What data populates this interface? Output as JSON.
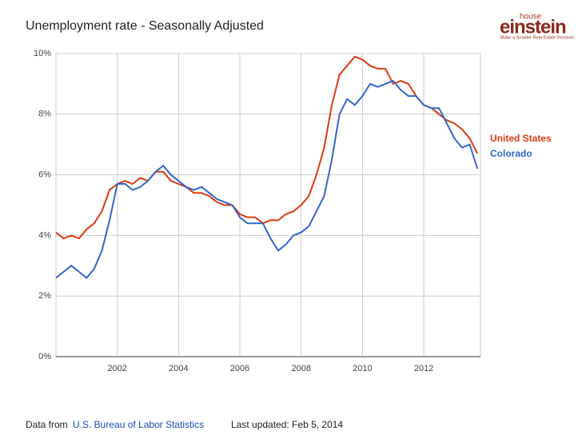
{
  "branding": {
    "small": "house",
    "name": "einstein",
    "tagline": "Make a Smarter Real Estate Decision"
  },
  "chart_data": {
    "type": "line",
    "title": "Unemployment rate - Seasonally Adjusted",
    "x": [
      2000,
      2000.25,
      2000.5,
      2000.75,
      2001,
      2001.25,
      2001.5,
      2001.75,
      2002,
      2002.25,
      2002.5,
      2002.75,
      2003,
      2003.25,
      2003.5,
      2003.75,
      2004,
      2004.25,
      2004.5,
      2004.75,
      2005,
      2005.25,
      2005.5,
      2005.75,
      2006,
      2006.25,
      2006.5,
      2006.75,
      2007,
      2007.25,
      2007.5,
      2007.75,
      2008,
      2008.25,
      2008.5,
      2008.75,
      2009,
      2009.25,
      2009.5,
      2009.75,
      2010,
      2010.25,
      2010.5,
      2010.75,
      2011,
      2011.25,
      2011.5,
      2011.75,
      2012,
      2012.25,
      2012.5,
      2012.75,
      2013,
      2013.25,
      2013.5,
      2013.75
    ],
    "series": [
      {
        "name": "United States",
        "color": "#dc3912",
        "values": [
          4.1,
          3.9,
          4.0,
          3.9,
          4.2,
          4.4,
          4.8,
          5.5,
          5.7,
          5.8,
          5.7,
          5.9,
          5.8,
          6.1,
          6.1,
          5.8,
          5.7,
          5.6,
          5.4,
          5.4,
          5.3,
          5.1,
          5.0,
          5.0,
          4.7,
          4.6,
          4.6,
          4.4,
          4.5,
          4.5,
          4.7,
          4.8,
          5.0,
          5.3,
          6.0,
          6.9,
          8.3,
          9.3,
          9.6,
          9.9,
          9.8,
          9.6,
          9.5,
          9.5,
          9.0,
          9.1,
          9.0,
          8.6,
          8.3,
          8.2,
          8.0,
          7.8,
          7.7,
          7.5,
          7.2,
          6.7
        ]
      },
      {
        "name": "Colorado",
        "color": "#3366cc",
        "values": [
          2.6,
          2.8,
          3.0,
          2.8,
          2.6,
          2.9,
          3.5,
          4.5,
          5.7,
          5.7,
          5.5,
          5.6,
          5.8,
          6.1,
          6.3,
          6.0,
          5.8,
          5.6,
          5.5,
          5.6,
          5.4,
          5.2,
          5.1,
          5.0,
          4.6,
          4.4,
          4.4,
          4.4,
          3.9,
          3.5,
          3.7,
          4.0,
          4.1,
          4.3,
          4.8,
          5.3,
          6.5,
          8.0,
          8.5,
          8.3,
          8.6,
          9.0,
          8.9,
          9.0,
          9.1,
          8.8,
          8.6,
          8.6,
          8.3,
          8.2,
          8.2,
          7.7,
          7.2,
          6.9,
          7.0,
          6.2
        ]
      }
    ],
    "xlim": [
      2000,
      2013.85
    ],
    "xticks": [
      2002,
      2004,
      2006,
      2008,
      2010,
      2012
    ],
    "ylim": [
      0,
      10
    ],
    "yticks": [
      {
        "value": 0,
        "label": "0%"
      },
      {
        "value": 2,
        "label": "2%"
      },
      {
        "value": 4,
        "label": "4%"
      },
      {
        "value": 6,
        "label": "6%"
      },
      {
        "value": 8,
        "label": "8%"
      },
      {
        "value": 10,
        "label": "10%"
      }
    ],
    "grid": true
  },
  "footer": {
    "source_prefix": "Data from",
    "source_link": "U.S. Bureau of Labor Statistics",
    "updated": "Last updated: Feb 5, 2014"
  }
}
